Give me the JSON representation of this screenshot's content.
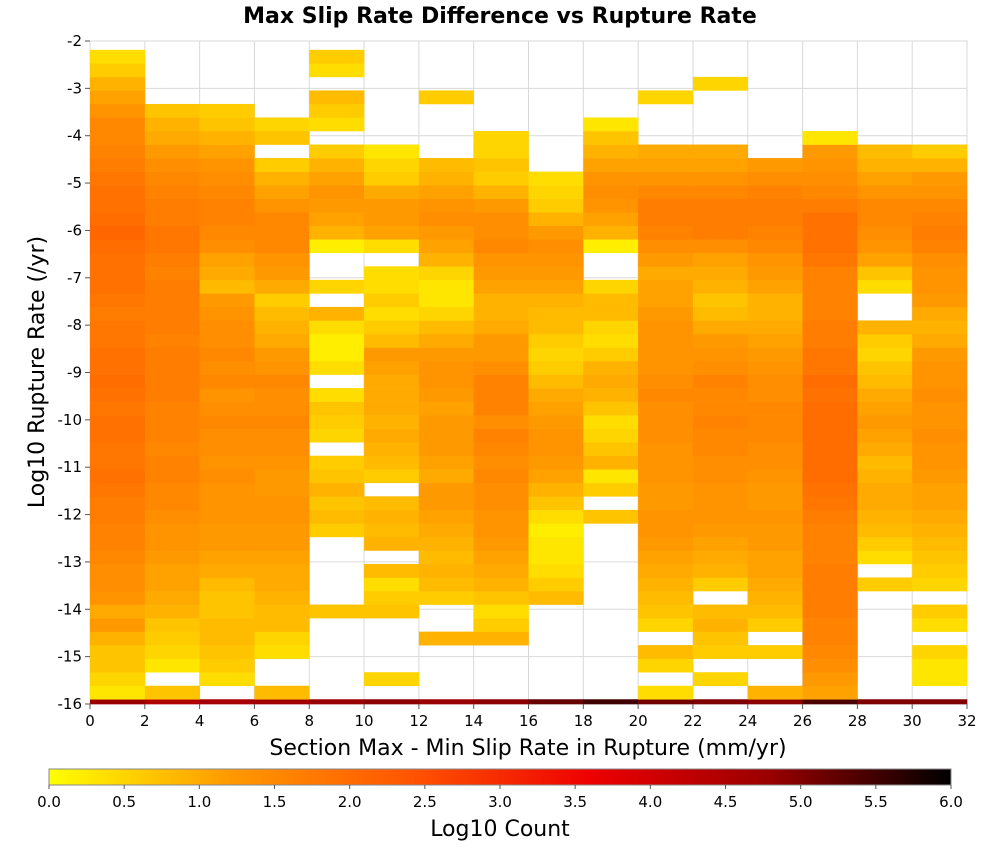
{
  "chart_data": {
    "type": "heatmap",
    "title": "Max Slip Rate Difference vs Rupture Rate",
    "xlabel": "Section Max - Min Slip Rate in Rupture (mm/yr)",
    "ylabel": "Log10 Rupture Rate (/yr)",
    "xlim": [
      0,
      32
    ],
    "ylim": [
      -16,
      -2
    ],
    "x_bin_width": 2,
    "y_bin_height": 0.2857,
    "x_ticks": [
      "0",
      "2",
      "4",
      "6",
      "8",
      "10",
      "12",
      "14",
      "16",
      "18",
      "20",
      "22",
      "24",
      "26",
      "28",
      "30",
      "32"
    ],
    "y_ticks": [
      "-2",
      "-3",
      "-4",
      "-5",
      "-6",
      "-7",
      "-8",
      "-9",
      "-10",
      "-11",
      "-12",
      "-13",
      "-14",
      "-15",
      "-16"
    ],
    "colorbar": {
      "label": "Log10 Count",
      "range": [
        0,
        6
      ],
      "ticks": [
        "0.0",
        "0.5",
        "1.0",
        "1.5",
        "2.0",
        "2.5",
        "3.0",
        "3.5",
        "4.0",
        "4.5",
        "5.0",
        "5.5",
        "6.0"
      ],
      "colors": [
        "#ffff00",
        "#ff9900",
        "#ff5500",
        "#ee0000",
        "#990000",
        "#000000"
      ]
    },
    "value_rows_note": "rows listed from bottom (y=-16) upward; null = empty bin",
    "columns": [
      {
        "x_start": 0,
        "values": [
          4.8,
          0.3,
          0.5,
          0.7,
          0.7,
          0.9,
          1.2,
          1.0,
          1.3,
          1.4,
          1.4,
          1.5,
          1.6,
          1.6,
          1.7,
          1.7,
          1.8,
          1.9,
          1.8,
          1.8,
          1.9,
          1.9,
          1.8,
          1.9,
          2.0,
          1.9,
          1.9,
          1.8,
          1.8,
          1.7,
          1.8,
          1.9,
          1.9,
          1.9,
          2.0,
          2.1,
          2.0,
          1.9,
          1.9,
          1.8,
          1.7,
          1.6,
          1.5,
          1.5,
          1.3,
          1.1,
          0.9,
          0.6,
          0.4,
          0.2,
          0.1
        ]
      },
      {
        "x_start": 2,
        "values": [
          4.5,
          0.7,
          null,
          0.3,
          0.5,
          0.6,
          0.7,
          0.9,
          1.0,
          1.1,
          1.1,
          1.2,
          1.3,
          1.3,
          1.4,
          1.5,
          1.5,
          1.6,
          1.6,
          1.5,
          1.6,
          1.6,
          1.6,
          1.7,
          1.7,
          1.7,
          1.7,
          1.6,
          1.7,
          1.7,
          1.7,
          1.7,
          1.6,
          1.7,
          1.8,
          1.8,
          1.7,
          1.7,
          1.6,
          1.5,
          1.4,
          1.2,
          1.0,
          0.9,
          0.7,
          null,
          null,
          null,
          null,
          null,
          null
        ]
      },
      {
        "x_start": 4,
        "values": [
          4.6,
          null,
          0.4,
          0.6,
          0.7,
          0.8,
          0.8,
          0.7,
          0.7,
          0.8,
          1.0,
          1.1,
          1.2,
          1.2,
          1.3,
          1.3,
          1.3,
          1.4,
          1.3,
          1.4,
          1.4,
          1.5,
          1.4,
          1.3,
          1.5,
          1.4,
          1.5,
          1.4,
          1.4,
          1.3,
          1.2,
          0.8,
          1.0,
          1.1,
          1.4,
          1.5,
          1.6,
          1.6,
          1.5,
          1.4,
          1.3,
          1.1,
          0.9,
          0.7,
          0.6,
          null,
          null,
          null,
          null,
          null,
          null
        ]
      },
      {
        "x_start": 6,
        "values": [
          4.7,
          0.8,
          null,
          null,
          0.4,
          0.5,
          0.8,
          0.8,
          0.9,
          1.0,
          1.0,
          1.1,
          1.2,
          1.2,
          1.3,
          1.3,
          1.2,
          1.2,
          1.3,
          1.4,
          1.4,
          1.5,
          1.4,
          1.4,
          1.5,
          1.3,
          1.2,
          1.0,
          0.9,
          0.8,
          0.6,
          1.0,
          1.2,
          1.3,
          1.5,
          1.5,
          1.5,
          1.3,
          1.1,
          0.9,
          0.6,
          null,
          0.7,
          0.5,
          null,
          null,
          null,
          null,
          null,
          null,
          null
        ]
      },
      {
        "x_start": 8,
        "values": [
          4.8,
          null,
          null,
          null,
          null,
          null,
          null,
          0.7,
          null,
          null,
          null,
          null,
          null,
          0.6,
          0.8,
          0.7,
          0.9,
          0.7,
          0.6,
          null,
          0.5,
          0.6,
          0.7,
          0.4,
          null,
          0.4,
          0.2,
          0.2,
          0.4,
          0.9,
          null,
          0.5,
          null,
          null,
          0.2,
          0.9,
          1.1,
          1.2,
          1.3,
          1.1,
          0.9,
          0.6,
          null,
          0.4,
          0.6,
          0.8,
          null,
          0.4,
          0.6,
          null,
          null
        ]
      },
      {
        "x_start": 10,
        "values": [
          4.9,
          null,
          0.5,
          null,
          null,
          null,
          null,
          0.7,
          0.6,
          0.4,
          0.8,
          null,
          0.9,
          0.8,
          0.9,
          0.8,
          null,
          0.6,
          0.8,
          0.9,
          1.0,
          0.9,
          1.0,
          1.0,
          1.0,
          1.1,
          1.2,
          0.8,
          0.6,
          0.4,
          0.6,
          0.4,
          0.4,
          null,
          0.4,
          1.1,
          1.2,
          1.2,
          1.0,
          0.6,
          0.5,
          0.3,
          null,
          null,
          null,
          null,
          null,
          null,
          null,
          null,
          null
        ]
      },
      {
        "x_start": 12,
        "values": [
          4.8,
          null,
          null,
          null,
          null,
          0.9,
          null,
          null,
          0.6,
          0.8,
          0.9,
          0.8,
          0.9,
          1.0,
          1.1,
          1.2,
          1.2,
          1.0,
          1.1,
          1.2,
          1.2,
          1.2,
          1.1,
          1.2,
          1.3,
          1.3,
          1.2,
          1.0,
          0.8,
          0.5,
          0.3,
          0.3,
          0.5,
          0.9,
          1.1,
          1.2,
          1.4,
          1.3,
          1.1,
          0.9,
          0.8,
          null,
          null,
          null,
          null,
          0.6,
          null,
          null,
          null,
          null,
          null
        ]
      },
      {
        "x_start": 14,
        "values": [
          4.9,
          null,
          null,
          null,
          null,
          0.9,
          0.6,
          0.4,
          0.7,
          0.9,
          1.0,
          1.1,
          1.2,
          1.3,
          1.3,
          1.4,
          1.4,
          1.5,
          1.4,
          1.5,
          1.6,
          1.4,
          1.6,
          1.6,
          1.6,
          1.4,
          1.2,
          1.2,
          1.0,
          0.9,
          0.9,
          1.1,
          1.2,
          1.3,
          1.5,
          1.4,
          1.4,
          1.2,
          0.9,
          0.6,
          0.7,
          0.5,
          0.5,
          null,
          null,
          null,
          null,
          null,
          null,
          null,
          null
        ]
      },
      {
        "x_start": 16,
        "values": [
          5.2,
          null,
          null,
          null,
          null,
          null,
          null,
          null,
          0.8,
          0.6,
          0.4,
          0.3,
          0.3,
          0.2,
          0.4,
          0.7,
          0.9,
          1.1,
          1.2,
          1.3,
          1.3,
          1.2,
          1.1,
          1.0,
          0.8,
          0.6,
          0.5,
          0.6,
          0.8,
          0.8,
          0.9,
          1.1,
          1.2,
          1.3,
          1.4,
          1.2,
          0.9,
          0.6,
          0.5,
          0.4,
          null,
          null,
          null,
          null,
          null,
          null,
          null,
          null,
          null,
          null,
          null
        ]
      },
      {
        "x_start": 18,
        "values": [
          5.5,
          null,
          null,
          null,
          null,
          null,
          null,
          null,
          null,
          null,
          null,
          null,
          null,
          null,
          0.7,
          null,
          0.6,
          0.3,
          0.9,
          0.7,
          0.5,
          0.4,
          0.7,
          0.9,
          1.0,
          0.9,
          0.6,
          0.4,
          0.5,
          0.8,
          0.8,
          0.5,
          null,
          null,
          0.2,
          0.9,
          1.1,
          1.3,
          1.4,
          1.3,
          1.1,
          0.9,
          0.7,
          0.3,
          null,
          null,
          null,
          null,
          null,
          null,
          null
        ]
      },
      {
        "x_start": 20,
        "values": [
          5.1,
          0.4,
          null,
          0.5,
          0.8,
          null,
          0.5,
          0.7,
          0.8,
          0.9,
          1.0,
          1.1,
          1.2,
          1.3,
          1.3,
          1.2,
          1.2,
          1.3,
          1.3,
          1.3,
          1.4,
          1.4,
          1.4,
          1.5,
          1.4,
          1.3,
          1.3,
          1.3,
          1.3,
          1.2,
          1.1,
          1.1,
          1.0,
          1.2,
          1.4,
          1.6,
          1.7,
          1.7,
          1.5,
          1.3,
          1.1,
          1.0,
          null,
          null,
          null,
          0.5,
          null,
          null,
          null,
          null,
          null
        ]
      },
      {
        "x_start": 22,
        "values": [
          5.0,
          null,
          0.5,
          null,
          0.6,
          0.7,
          0.9,
          0.8,
          null,
          0.6,
          0.9,
          1.0,
          1.1,
          1.2,
          1.3,
          1.3,
          1.3,
          1.4,
          1.4,
          1.5,
          1.5,
          1.6,
          1.5,
          1.5,
          1.6,
          1.4,
          1.3,
          1.2,
          1.0,
          0.8,
          0.7,
          0.9,
          1.0,
          1.1,
          1.4,
          1.7,
          1.7,
          1.7,
          1.5,
          1.3,
          1.1,
          1.0,
          null,
          null,
          null,
          null,
          0.5,
          null,
          null,
          null,
          null
        ]
      },
      {
        "x_start": 24,
        "values": [
          4.9,
          0.9,
          null,
          null,
          0.6,
          null,
          0.6,
          0.8,
          0.9,
          1.0,
          1.1,
          1.1,
          1.2,
          1.2,
          1.3,
          1.2,
          1.2,
          1.3,
          1.4,
          1.4,
          1.5,
          1.5,
          1.5,
          1.4,
          1.4,
          1.3,
          1.2,
          1.1,
          1.0,
          0.9,
          0.9,
          1.1,
          1.2,
          1.3,
          1.5,
          1.6,
          1.7,
          1.7,
          1.6,
          1.4,
          1.2,
          null,
          null,
          null,
          null,
          null,
          null,
          null,
          null,
          null,
          null
        ]
      },
      {
        "x_start": 26,
        "values": [
          5.4,
          1.1,
          1.2,
          1.4,
          1.5,
          1.6,
          1.6,
          1.7,
          1.7,
          1.7,
          1.7,
          1.6,
          1.6,
          1.6,
          1.7,
          1.8,
          1.9,
          2.0,
          2.0,
          2.0,
          2.0,
          2.0,
          2.0,
          1.9,
          2.0,
          1.8,
          1.8,
          1.7,
          1.7,
          1.6,
          1.6,
          1.6,
          1.6,
          1.8,
          1.9,
          1.9,
          1.9,
          1.7,
          1.5,
          1.4,
          1.3,
          1.2,
          0.3,
          null,
          null,
          null,
          null,
          null,
          null,
          null,
          null
        ]
      },
      {
        "x_start": 28,
        "values": [
          5.0,
          null,
          null,
          null,
          null,
          null,
          null,
          null,
          null,
          0.6,
          null,
          0.4,
          0.6,
          0.8,
          0.9,
          1.0,
          1.0,
          0.9,
          0.8,
          1.0,
          1.1,
          1.2,
          1.1,
          1.0,
          0.8,
          0.7,
          0.5,
          0.6,
          0.9,
          null,
          null,
          0.4,
          0.7,
          1.1,
          1.3,
          1.4,
          1.5,
          1.5,
          1.3,
          1.1,
          0.9,
          0.8,
          null,
          null,
          null,
          null,
          null,
          null,
          null,
          null,
          null
        ]
      },
      {
        "x_start": 30,
        "values": [
          5.0,
          null,
          0.3,
          0.3,
          0.5,
          null,
          0.4,
          0.6,
          null,
          0.5,
          0.6,
          0.7,
          0.8,
          0.9,
          1.0,
          1.1,
          1.1,
          1.2,
          1.3,
          1.3,
          1.4,
          1.3,
          1.3,
          1.4,
          1.3,
          1.3,
          1.2,
          1.0,
          0.9,
          1.0,
          1.2,
          1.3,
          1.3,
          1.4,
          1.6,
          1.7,
          1.6,
          1.5,
          1.3,
          1.2,
          0.9,
          0.6,
          null,
          null,
          null,
          null,
          null,
          null,
          null,
          null,
          null
        ]
      }
    ]
  }
}
